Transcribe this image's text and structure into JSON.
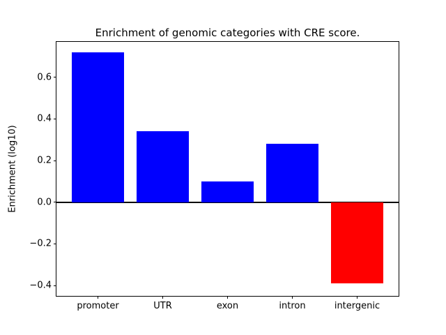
{
  "chart_data": {
    "type": "bar",
    "title": "Enrichment of genomic categories with CRE score.",
    "xlabel": "",
    "ylabel": "Enrichment (log10)",
    "categories": [
      "promoter",
      "UTR",
      "exon",
      "intron",
      "intergenic"
    ],
    "values": [
      0.72,
      0.34,
      0.1,
      0.28,
      -0.39
    ],
    "bar_colors": [
      "#0000ff",
      "#0000ff",
      "#0000ff",
      "#0000ff",
      "#ff0000"
    ],
    "positive_color": "#0000ff",
    "negative_color": "#ff0000",
    "bar_width": 0.8,
    "xlim": [
      -0.64,
      4.64
    ],
    "ylim": [
      -0.45,
      0.77
    ],
    "yticks": [
      {
        "value": -0.4,
        "label": "−0.4"
      },
      {
        "value": -0.2,
        "label": "−0.2"
      },
      {
        "value": 0.0,
        "label": "0.0"
      },
      {
        "value": 0.2,
        "label": "0.2"
      },
      {
        "value": 0.4,
        "label": "0.4"
      },
      {
        "value": 0.6,
        "label": "0.6"
      }
    ],
    "zero_line": {
      "y": 0.0,
      "color": "#000000",
      "thickness_px": 2
    },
    "grid": false,
    "legend": null,
    "spine_color": "#000000",
    "background_color": "#ffffff"
  }
}
